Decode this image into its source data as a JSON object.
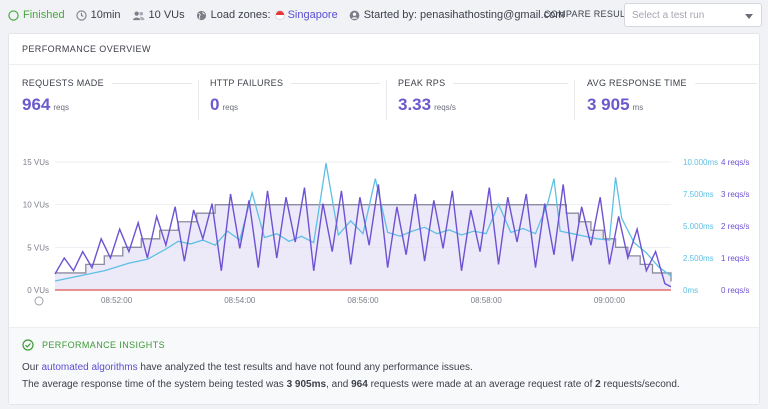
{
  "topbar": {
    "status": "Finished",
    "duration": "10min",
    "vus": "10 VUs",
    "zones_label": "Load zones:",
    "zone_city": "Singapore",
    "started_by": "Started by: penasihathosting@gmail.com",
    "compare_label": "COMPARE RESULT",
    "compare_placeholder": "Select a test run",
    "icons": [
      "check-circle-icon",
      "clock-icon",
      "users-icon",
      "globe-icon",
      "user-icon",
      "chevron-down-icon"
    ]
  },
  "overview": {
    "title": "PERFORMANCE OVERVIEW",
    "metrics": [
      {
        "label": "REQUESTS MADE",
        "value": "964",
        "unit": "reqs"
      },
      {
        "label": "HTTP FAILURES",
        "value": "0",
        "unit": "reqs"
      },
      {
        "label": "PEAK RPS",
        "value": "3.33",
        "unit": "reqs/s"
      },
      {
        "label": "AVG RESPONSE TIME",
        "value": "3 905",
        "unit": "ms"
      }
    ]
  },
  "chart_data": {
    "type": "line",
    "x_ticks": [
      "08:52:00",
      "08:54:00",
      "08:56:00",
      "08:58:00",
      "09:00:00"
    ],
    "x_range_minutes": [
      0,
      10
    ],
    "y_left_ticks": [
      "15 VUs",
      "10 VUs",
      "5 VUs",
      "0 VUs"
    ],
    "y_left_range": [
      0,
      15
    ],
    "y_right1_ticks": [
      "10.000ms",
      "7.500ms",
      "5.000ms",
      "2.500ms",
      "0ms"
    ],
    "y_right1_range": [
      0,
      10000
    ],
    "y_right2_ticks": [
      "4 reqs/s",
      "3 reqs/s",
      "2 reqs/s",
      "1 reqs/s",
      "0 reqs/s"
    ],
    "y_right2_range": [
      0,
      4
    ],
    "colors": {
      "vus": "#8a8ca0",
      "response": "#5ec0e4",
      "rps": "#6e52d2",
      "failures": "#e05555",
      "area": "#e4e0f7"
    },
    "vus_steps": [
      [
        0,
        2
      ],
      [
        0.5,
        3
      ],
      [
        0.8,
        4
      ],
      [
        1.1,
        5
      ],
      [
        1.4,
        6
      ],
      [
        1.7,
        7
      ],
      [
        2.0,
        8
      ],
      [
        2.3,
        9
      ],
      [
        2.6,
        10
      ],
      [
        8.0,
        10
      ],
      [
        8.3,
        9
      ],
      [
        8.5,
        8
      ],
      [
        8.7,
        7
      ],
      [
        8.9,
        6
      ],
      [
        9.1,
        5
      ],
      [
        9.3,
        4
      ],
      [
        9.5,
        3
      ],
      [
        9.7,
        2
      ],
      [
        10,
        1
      ]
    ],
    "response_ms": [
      [
        0,
        700
      ],
      [
        0.4,
        1100
      ],
      [
        0.8,
        1500
      ],
      [
        1.0,
        1800
      ],
      [
        1.2,
        2100
      ],
      [
        1.5,
        2400
      ],
      [
        1.8,
        3200
      ],
      [
        2.0,
        3800
      ],
      [
        2.2,
        3600
      ],
      [
        2.4,
        3900
      ],
      [
        2.6,
        3500
      ],
      [
        2.8,
        4600
      ],
      [
        3.0,
        3900
      ],
      [
        3.2,
        7600
      ],
      [
        3.4,
        4100
      ],
      [
        3.6,
        4400
      ],
      [
        3.8,
        3800
      ],
      [
        4.0,
        4200
      ],
      [
        4.2,
        3700
      ],
      [
        4.4,
        9900
      ],
      [
        4.6,
        4300
      ],
      [
        4.8,
        5400
      ],
      [
        5.0,
        4400
      ],
      [
        5.2,
        8700
      ],
      [
        5.4,
        4500
      ],
      [
        5.6,
        4200
      ],
      [
        5.8,
        4600
      ],
      [
        6.0,
        4900
      ],
      [
        6.2,
        4400
      ],
      [
        6.4,
        4700
      ],
      [
        6.6,
        4300
      ],
      [
        6.8,
        4600
      ],
      [
        7.0,
        4400
      ],
      [
        7.2,
        6700
      ],
      [
        7.4,
        4500
      ],
      [
        7.6,
        4800
      ],
      [
        7.8,
        4400
      ],
      [
        8.0,
        6800
      ],
      [
        8.1,
        8700
      ],
      [
        8.2,
        4600
      ],
      [
        8.4,
        4400
      ],
      [
        8.6,
        4200
      ],
      [
        8.8,
        4000
      ],
      [
        9.0,
        3900
      ],
      [
        9.1,
        8800
      ],
      [
        9.2,
        5600
      ],
      [
        9.4,
        3700
      ],
      [
        9.6,
        2900
      ],
      [
        9.8,
        1800
      ],
      [
        10,
        1100
      ]
    ],
    "rps": [
      [
        0,
        0.5
      ],
      [
        0.15,
        1.0
      ],
      [
        0.3,
        0.6
      ],
      [
        0.45,
        1.2
      ],
      [
        0.6,
        0.7
      ],
      [
        0.75,
        1.6
      ],
      [
        0.9,
        1.0
      ],
      [
        1.05,
        1.9
      ],
      [
        1.2,
        1.2
      ],
      [
        1.35,
        2.1
      ],
      [
        1.5,
        1.0
      ],
      [
        1.65,
        2.3
      ],
      [
        1.8,
        1.4
      ],
      [
        1.95,
        2.6
      ],
      [
        2.1,
        0.9
      ],
      [
        2.25,
        2.5
      ],
      [
        2.4,
        1.6
      ],
      [
        2.55,
        2.7
      ],
      [
        2.7,
        0.6
      ],
      [
        2.85,
        3.0
      ],
      [
        3.0,
        1.3
      ],
      [
        3.15,
        2.8
      ],
      [
        3.3,
        0.7
      ],
      [
        3.45,
        3.1
      ],
      [
        3.6,
        1.0
      ],
      [
        3.75,
        2.9
      ],
      [
        3.9,
        1.5
      ],
      [
        4.05,
        3.2
      ],
      [
        4.2,
        0.6
      ],
      [
        4.35,
        2.7
      ],
      [
        4.5,
        1.2
      ],
      [
        4.65,
        3.1
      ],
      [
        4.8,
        0.8
      ],
      [
        4.95,
        2.9
      ],
      [
        5.1,
        1.4
      ],
      [
        5.25,
        3.3
      ],
      [
        5.4,
        0.7
      ],
      [
        5.55,
        2.6
      ],
      [
        5.7,
        1.1
      ],
      [
        5.85,
        3.0
      ],
      [
        6.0,
        0.9
      ],
      [
        6.15,
        2.8
      ],
      [
        6.3,
        1.3
      ],
      [
        6.45,
        3.1
      ],
      [
        6.6,
        0.6
      ],
      [
        6.75,
        2.5
      ],
      [
        6.9,
        1.2
      ],
      [
        7.05,
        3.2
      ],
      [
        7.2,
        0.8
      ],
      [
        7.35,
        2.9
      ],
      [
        7.5,
        1.5
      ],
      [
        7.65,
        3.0
      ],
      [
        7.8,
        0.7
      ],
      [
        7.95,
        2.7
      ],
      [
        8.1,
        1.1
      ],
      [
        8.25,
        3.3
      ],
      [
        8.4,
        0.9
      ],
      [
        8.55,
        2.6
      ],
      [
        8.7,
        1.4
      ],
      [
        8.85,
        2.9
      ],
      [
        9.0,
        0.8
      ],
      [
        9.15,
        2.3
      ],
      [
        9.3,
        1.0
      ],
      [
        9.45,
        1.9
      ],
      [
        9.6,
        0.6
      ],
      [
        9.75,
        1.2
      ],
      [
        9.9,
        0.2
      ],
      [
        10,
        0.1
      ]
    ],
    "failures": [
      [
        0,
        0
      ],
      [
        10,
        0
      ]
    ]
  },
  "insights": {
    "title": "PERFORMANCE INSIGHTS",
    "line1_pre": "Our ",
    "line1_link": "automated algorithms",
    "line1_post": " have analyzed the test results and have not found any performance issues.",
    "line2_a": "The average response time of the system being tested was ",
    "line2_b": "3 905ms",
    "line2_c": ", and ",
    "line2_d": "964",
    "line2_e": " requests were made at an average request rate of ",
    "line2_f": "2",
    "line2_g": " requests/second."
  }
}
